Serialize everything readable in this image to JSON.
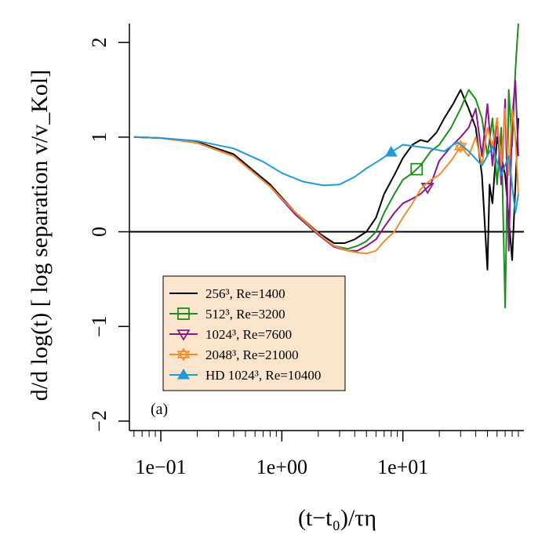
{
  "chart_data": {
    "type": "line",
    "title": "",
    "xlabel": "(t−t₀)/τη",
    "ylabel": "d/d log(t) [ log separation v/v_Kol]",
    "xscale": "log10",
    "xlim": [
      0.055,
      100
    ],
    "ylim": [
      -2.1,
      2.2
    ],
    "x_ticks": [
      {
        "value": 0.1,
        "label": "1e−01"
      },
      {
        "value": 1,
        "label": "1e+00"
      },
      {
        "value": 10,
        "label": "1e+01"
      }
    ],
    "y_ticks": [
      {
        "value": -2,
        "label": "−2"
      },
      {
        "value": -1,
        "label": "−1"
      },
      {
        "value": 0,
        "label": "0"
      },
      {
        "value": 1,
        "label": "1"
      },
      {
        "value": 2,
        "label": "2"
      }
    ],
    "reference_line": {
      "y": 0,
      "color": "#000000"
    },
    "panel_label": "(a)",
    "legend": {
      "position": "bottom-left",
      "background": "#fbe5cc"
    },
    "series": [
      {
        "name": "256³, Re=1400",
        "color": "#000000",
        "marker": "none",
        "x": [
          0.06,
          0.1,
          0.2,
          0.4,
          0.8,
          1.3,
          2.0,
          2.7,
          3.3,
          4.0,
          5.0,
          6.0,
          7.0,
          8.5,
          10,
          12,
          14,
          16,
          19,
          22,
          26,
          30,
          35,
          40,
          45,
          50,
          52,
          55,
          60,
          70,
          80,
          90
        ],
        "y": [
          1.0,
          0.99,
          0.95,
          0.82,
          0.5,
          0.2,
          -0.01,
          -0.12,
          -0.12,
          -0.08,
          0.0,
          0.15,
          0.4,
          0.6,
          0.78,
          0.92,
          0.97,
          0.95,
          1.05,
          1.2,
          1.35,
          1.5,
          1.3,
          1.1,
          0.6,
          -0.4,
          0.5,
          0.3,
          1.0,
          0.6,
          -0.3,
          1.2
        ]
      },
      {
        "name": "512³, Re=3200",
        "color": "#1a8f1a",
        "marker": "square",
        "marker_at": [
          13.0
        ],
        "x": [
          0.06,
          0.1,
          0.2,
          0.4,
          0.8,
          1.3,
          2.0,
          2.7,
          3.5,
          4.2,
          5.0,
          6.0,
          7.0,
          8.5,
          10,
          12,
          14,
          17,
          20,
          25,
          30,
          35,
          40,
          45,
          50,
          55,
          60,
          65,
          70,
          75,
          80,
          85,
          90
        ],
        "y": [
          1.0,
          0.99,
          0.94,
          0.8,
          0.48,
          0.18,
          -0.03,
          -0.15,
          -0.18,
          -0.15,
          -0.1,
          0.0,
          0.2,
          0.4,
          0.55,
          0.62,
          0.7,
          0.85,
          0.92,
          1.1,
          1.3,
          1.5,
          1.4,
          1.2,
          0.8,
          1.2,
          0.5,
          1.1,
          -0.8,
          1.5,
          0.9,
          1.7,
          2.2
        ]
      },
      {
        "name": "1024³, Re=7600",
        "color": "#8b168b",
        "marker": "triangle-down",
        "marker_at": [
          16.0
        ],
        "x": [
          0.06,
          0.1,
          0.2,
          0.4,
          0.8,
          1.3,
          2.0,
          2.7,
          3.5,
          4.2,
          5.0,
          6.0,
          7.0,
          8.5,
          10,
          12,
          14,
          17,
          20,
          25,
          30,
          35,
          40,
          45,
          50,
          55,
          60,
          65,
          70,
          75,
          80,
          85,
          90
        ],
        "y": [
          1.0,
          0.99,
          0.94,
          0.8,
          0.48,
          0.18,
          -0.03,
          -0.16,
          -0.2,
          -0.2,
          -0.15,
          -0.08,
          0.05,
          0.2,
          0.3,
          0.35,
          0.4,
          0.5,
          0.75,
          0.9,
          1.0,
          1.1,
          1.3,
          0.8,
          1.35,
          0.7,
          1.2,
          0.5,
          1.4,
          -0.2,
          1.2,
          1.6,
          0.8
        ]
      },
      {
        "name": "2048³, Re=21000",
        "color": "#f58a2a",
        "marker": "star",
        "marker_at": [
          30.0
        ],
        "x": [
          0.06,
          0.1,
          0.2,
          0.4,
          0.8,
          1.3,
          2.0,
          2.7,
          3.5,
          4.2,
          5.0,
          6.0,
          7.0,
          8.5,
          10,
          12,
          14,
          17,
          20,
          25,
          30,
          35,
          40,
          45,
          50,
          55,
          60,
          65,
          70,
          75,
          80,
          85,
          90
        ],
        "y": [
          1.0,
          0.99,
          0.94,
          0.8,
          0.48,
          0.2,
          -0.02,
          -0.15,
          -0.2,
          -0.22,
          -0.23,
          -0.2,
          -0.1,
          0.0,
          0.15,
          0.3,
          0.45,
          0.55,
          0.6,
          0.75,
          0.9,
          0.8,
          1.0,
          0.7,
          1.1,
          0.9,
          1.2,
          0.7,
          1.3,
          0.6,
          1.3,
          1.0,
          0.4
        ]
      },
      {
        "name": "HD 1024³, Re=10400",
        "color": "#1e9bd7",
        "marker": "triangle-up",
        "marker_at": [
          8.0
        ],
        "x": [
          0.06,
          0.1,
          0.2,
          0.4,
          0.7,
          1.0,
          1.5,
          2.2,
          3.0,
          4.0,
          5.0,
          6.5,
          8.0,
          10,
          13,
          17,
          22,
          28,
          35,
          45,
          55,
          65,
          75,
          85,
          90
        ],
        "y": [
          1.0,
          0.99,
          0.96,
          0.88,
          0.74,
          0.62,
          0.53,
          0.49,
          0.5,
          0.58,
          0.67,
          0.76,
          0.84,
          0.92,
          0.9,
          0.88,
          0.85,
          0.95,
          0.85,
          0.7,
          0.9,
          0.6,
          0.8,
          0.2,
          0.4
        ]
      }
    ]
  }
}
